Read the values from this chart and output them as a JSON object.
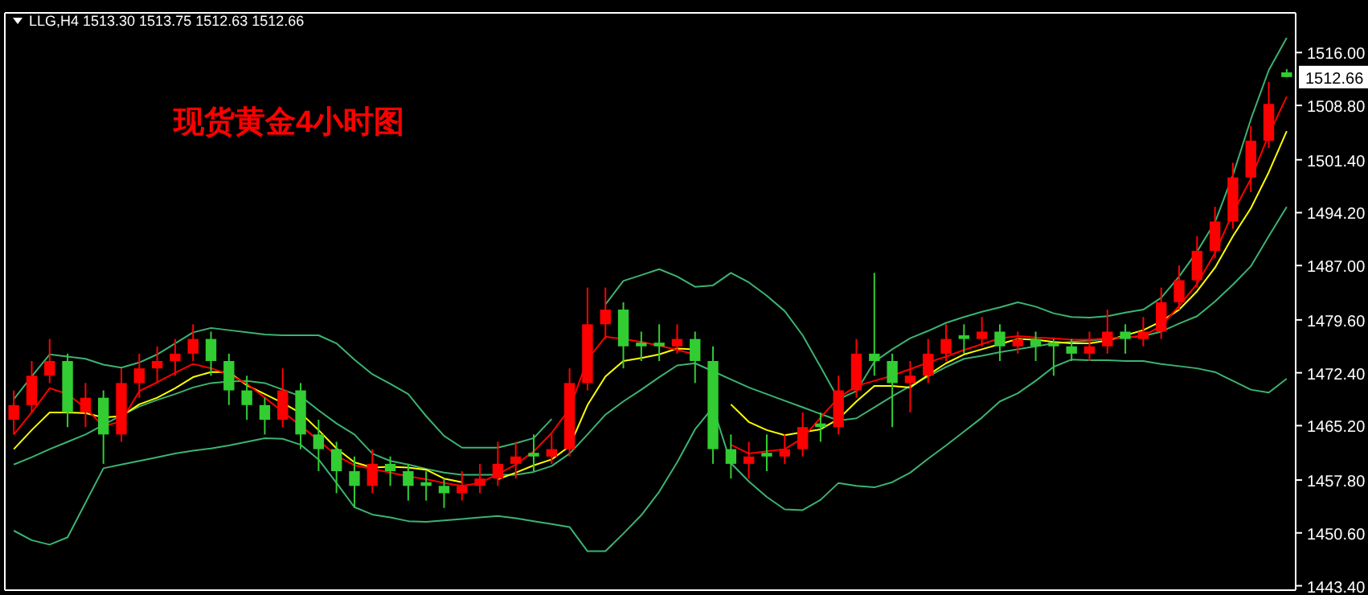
{
  "chart_data": {
    "type": "candlestick",
    "title": "现货黄金4小时图",
    "subtitle": "LLG,H4  1513.30 1513.75 1512.63 1512.66",
    "categories": [
      null,
      null,
      null,
      null,
      null,
      null,
      null,
      null,
      null,
      null,
      null,
      null,
      null,
      null,
      null,
      null,
      null,
      null,
      null,
      null,
      null,
      null,
      null,
      null,
      null,
      null,
      null,
      null,
      null,
      null,
      null,
      null,
      null,
      null,
      null,
      null,
      null,
      null,
      null,
      null,
      null,
      null,
      null,
      null,
      null,
      null,
      null,
      null,
      null,
      null,
      null,
      null,
      null,
      null,
      null,
      null,
      null,
      null,
      null,
      null,
      null,
      null,
      null,
      null,
      null,
      null,
      null,
      null,
      null,
      null,
      null,
      null
    ],
    "ohlc": [
      [
        1466,
        1470,
        1464,
        1468
      ],
      [
        1468,
        1474,
        1467,
        1472
      ],
      [
        1472,
        1477,
        1471,
        1474
      ],
      [
        1474,
        1475,
        1465,
        1467
      ],
      [
        1467,
        1471,
        1465,
        1469
      ],
      [
        1469,
        1470,
        1460,
        1464
      ],
      [
        1464,
        1473,
        1463,
        1471
      ],
      [
        1471,
        1475,
        1469,
        1473
      ],
      [
        1473,
        1476,
        1471,
        1474
      ],
      [
        1474,
        1477,
        1472,
        1475
      ],
      [
        1475,
        1479,
        1474,
        1477
      ],
      [
        1477,
        1478,
        1472,
        1474
      ],
      [
        1474,
        1475,
        1468,
        1470
      ],
      [
        1470,
        1472,
        1466,
        1468
      ],
      [
        1468,
        1469,
        1464,
        1466
      ],
      [
        1466,
        1473,
        1465,
        1470
      ],
      [
        1470,
        1471,
        1462,
        1464
      ],
      [
        1464,
        1466,
        1459,
        1462
      ],
      [
        1462,
        1463,
        1456,
        1459
      ],
      [
        1459,
        1461,
        1454,
        1457
      ],
      [
        1457,
        1462,
        1456,
        1460
      ],
      [
        1460,
        1461,
        1457,
        1459
      ],
      [
        1459,
        1460,
        1455,
        1457
      ],
      [
        1457.5,
        1459,
        1455,
        1457
      ],
      [
        1457,
        1458,
        1454,
        1456
      ],
      [
        1456,
        1459,
        1455,
        1457
      ],
      [
        1457,
        1460,
        1456,
        1458
      ],
      [
        1458,
        1463,
        1457,
        1460
      ],
      [
        1460,
        1463,
        1458,
        1461
      ],
      [
        1461.5,
        1464,
        1459,
        1461
      ],
      [
        1461,
        1464,
        1460,
        1462
      ],
      [
        1462,
        1473,
        1461,
        1471
      ],
      [
        1471,
        1484,
        1470,
        1479
      ],
      [
        1479,
        1484,
        1477,
        1481
      ],
      [
        1481,
        1482,
        1473,
        1476
      ],
      [
        1476.5,
        1478,
        1474,
        1476
      ],
      [
        1476.5,
        1479,
        1474,
        1476
      ],
      [
        1476,
        1479,
        1475,
        1477
      ],
      [
        1477,
        1478,
        1471,
        1474
      ],
      [
        1474,
        1476,
        1460,
        1462
      ],
      [
        1462,
        1464,
        1458,
        1460
      ],
      [
        1460,
        1463,
        1458,
        1461
      ],
      [
        1461.5,
        1464,
        1459,
        1461
      ],
      [
        1461,
        1464,
        1460,
        1462
      ],
      [
        1462,
        1467,
        1461,
        1465
      ],
      [
        1465.5,
        1467,
        1463,
        1465
      ],
      [
        1465,
        1472,
        1464,
        1470
      ],
      [
        1470,
        1477,
        1469,
        1475
      ],
      [
        1475,
        1486,
        1472,
        1474
      ],
      [
        1474,
        1475,
        1465,
        1471
      ],
      [
        1471,
        1474,
        1467,
        1472
      ],
      [
        1472,
        1477,
        1471,
        1475
      ],
      [
        1475,
        1479,
        1474,
        1477
      ],
      [
        1477.5,
        1479,
        1475,
        1477
      ],
      [
        1477,
        1480,
        1476,
        1478
      ],
      [
        1478,
        1479,
        1474,
        1476
      ],
      [
        1476,
        1478,
        1475,
        1477
      ],
      [
        1477,
        1478,
        1474,
        1476
      ],
      [
        1476.5,
        1477,
        1472,
        1476
      ],
      [
        1476,
        1477,
        1474,
        1475
      ],
      [
        1475,
        1478,
        1474,
        1476
      ],
      [
        1476,
        1481,
        1475,
        1478
      ],
      [
        1478,
        1479,
        1475,
        1477
      ],
      [
        1477,
        1480,
        1476,
        1478
      ],
      [
        1478,
        1484,
        1477,
        1482
      ],
      [
        1482,
        1487,
        1481,
        1485
      ],
      [
        1485,
        1491,
        1484,
        1489
      ],
      [
        1489,
        1495,
        1488,
        1493
      ],
      [
        1493,
        1501,
        1492,
        1499
      ],
      [
        1499,
        1506,
        1497,
        1504
      ],
      [
        1504,
        1512,
        1503,
        1509
      ],
      [
        1513.3,
        1513.75,
        1512.63,
        1512.66
      ]
    ],
    "colors": [
      "#ff0000",
      "#ff0000",
      "#ff0000",
      "#32cd32",
      "#ff0000",
      "#32cd32",
      "#ff0000",
      "#ff0000",
      "#ff0000",
      "#ff0000",
      "#ff0000",
      "#32cd32",
      "#32cd32",
      "#32cd32",
      "#32cd32",
      "#ff0000",
      "#32cd32",
      "#32cd32",
      "#32cd32",
      "#32cd32",
      "#ff0000",
      "#32cd32",
      "#32cd32",
      "#32cd32",
      "#32cd32",
      "#ff0000",
      "#ff0000",
      "#ff0000",
      "#ff0000",
      "#32cd32",
      "#ff0000",
      "#ff0000",
      "#ff0000",
      "#ff0000",
      "#32cd32",
      "#32cd32",
      "#32cd32",
      "#ff0000",
      "#32cd32",
      "#32cd32",
      "#32cd32",
      "#ff0000",
      "#32cd32",
      "#ff0000",
      "#ff0000",
      "#32cd32",
      "#ff0000",
      "#ff0000",
      "#32cd32",
      "#32cd32",
      "#ff0000",
      "#ff0000",
      "#ff0000",
      "#32cd32",
      "#ff0000",
      "#32cd32",
      "#ff0000",
      "#32cd32",
      "#32cd32",
      "#32cd32",
      "#ff0000",
      "#ff0000",
      "#32cd32",
      "#ff0000",
      "#ff0000",
      "#ff0000",
      "#ff0000",
      "#ff0000",
      "#ff0000",
      "#ff0000",
      "#ff0000",
      "#32cd32"
    ],
    "series": [
      {
        "type": "line",
        "color": "#3cb371",
        "values": [
          1468.8,
          1471.9,
          1474.9,
          1474.6,
          1474.3,
          1473.5,
          1473.1,
          1473.8,
          1474.9,
          1476.4,
          1477.9,
          1478.5,
          1478.2,
          1477.9,
          1477.6,
          1477.5,
          1477.5,
          1477.5,
          1476.4,
          1474.2,
          1472.2,
          1470.9,
          1469.5,
          1466.5,
          1463.8,
          1462.2,
          1462.2,
          1462.2,
          1462.8,
          1463.5,
          1466.1,
          null,
          null,
          1481.7,
          1484.9,
          1485.7,
          1486.5,
          1485.5,
          1484.1,
          1484.3,
          1486.0,
          1484.7,
          1482.9,
          1480.8,
          1477.5,
          1473.2,
          1468.8,
          1469.9,
          1473.9,
          1475.6,
          1477.1,
          1478.1,
          1479.2,
          1480.0,
          1480.7,
          1481.3,
          1482.0,
          1481.4,
          1480.5,
          1480.0,
          1479.9,
          1480.1,
          1480.6,
          1481.0,
          1482.6,
          1485.5,
          1488.9,
          1492.9,
          1499.3,
          1506.9,
          1513.6,
          1518.0
        ]
      },
      {
        "type": "line",
        "color": "#3cb371",
        "values": [
          1459.9,
          1460.9,
          1462.0,
          1463.0,
          1464.0,
          1465.3,
          1466.6,
          1467.8,
          1468.7,
          1469.5,
          1470.4,
          1471.0,
          1471.2,
          1471.3,
          1471.0,
          1470.1,
          1469.2,
          1467.3,
          1465.5,
          1464.0,
          1461.4,
          1460.4,
          1459.9,
          1459.3,
          1458.8,
          1458.5,
          1458.5,
          1458.5,
          1458.5,
          1458.9,
          1459.7,
          1461.4,
          1464.0,
          1466.7,
          1468.5,
          1470.1,
          1471.8,
          1473.4,
          1473.7,
          1472.6,
          1471.5,
          1470.4,
          1469.5,
          1468.6,
          1467.7,
          1466.8,
          1465.9,
          1466.2,
          1467.7,
          1469.2,
          1470.6,
          1471.9,
          1473.2,
          1474.3,
          1474.7,
          1475.2,
          1475.6,
          1476.0,
          1476.4,
          1476.6,
          1476.8,
          1477.0,
          1477.2,
          1477.4,
          1478.0,
          1479.1,
          1480.1,
          1482.1,
          1484.4,
          1486.9,
          1491.0,
          1495.0
        ]
      },
      {
        "type": "line",
        "color": "#3cb371",
        "values": [
          1450.9,
          1449.6,
          1449.0,
          1450.0,
          1454.7,
          1459.4,
          1459.9,
          1460.4,
          1460.9,
          1461.4,
          1461.8,
          1462.1,
          1462.5,
          1463.0,
          1463.5,
          1463.4,
          1462.6,
          1460.6,
          1457.4,
          1454.1,
          1453.1,
          1452.7,
          1452.2,
          1452.1,
          1452.3,
          1452.5,
          1452.7,
          1452.9,
          1452.6,
          1452.2,
          1451.8,
          1451.4,
          1448.1,
          1448.1,
          1450.5,
          1453.0,
          1456.2,
          1460.2,
          1464.7,
          1467.7,
          1460.1,
          1457.6,
          1455.5,
          1453.8,
          1453.7,
          1455.1,
          1457.4,
          1457.0,
          1456.8,
          1457.5,
          1458.8,
          1460.7,
          1462.5,
          1464.4,
          1466.3,
          1468.5,
          1469.6,
          1471.3,
          1473.2,
          1474.2,
          1474.1,
          1474.1,
          1474.0,
          1474.0,
          1473.6,
          1473.3,
          1473.0,
          1472.5,
          1471.3,
          1470.1,
          1469.7,
          1471.6
        ]
      },
      {
        "type": "line",
        "color": "#ffff00",
        "values": [
          1462.0,
          1464.6,
          1467.0,
          1467.0,
          1466.9,
          1466.3,
          1466.5,
          1468.1,
          1469.0,
          1470.3,
          1471.8,
          1472.5,
          1472.5,
          1470.7,
          1469.5,
          1468.3,
          1466.9,
          1464.6,
          1462.1,
          1460.2,
          1459.5,
          1459.6,
          1459.5,
          1459.2,
          1458.0,
          1457.5,
          null,
          1457.9,
          1458.8,
          1459.8,
          1460.6,
          1462.4,
          1468.0,
          1471.9,
          1474.0,
          1474.4,
          1474.9,
          1475.7,
          1475.6,
          null,
          1468.1,
          1465.7,
          1464.6,
          1463.9,
          1464.3,
          1464.7,
          1466.1,
          1468.5,
          1470.6,
          1470.6,
          1470.4,
          1472.1,
          1473.7,
          1474.9,
          1475.6,
          1476.3,
          1477.0,
          1476.9,
          1476.6,
          1476.4,
          1476.4,
          1476.8,
          1477.5,
          1478.2,
          1479.4,
          1481.0,
          1483.5,
          1486.7,
          1491.0,
          1494.8,
          1499.7,
          1505.3
        ]
      },
      {
        "type": "line",
        "color": "#ff0000",
        "values": [
          1464.0,
          1467.0,
          1470.3,
          1469.5,
          1467.6,
          1465.1,
          1465.8,
          1469.9,
          1471.1,
          1472.4,
          1473.6,
          1473.0,
          1472.2,
          1470.9,
          1469.0,
          1467.1,
          1465.2,
          1463.2,
          1461.1,
          1459.8,
          1459.3,
          1458.8,
          1458.3,
          1457.9,
          1457.4,
          1457.0,
          1457.4,
          1458.6,
          1459.9,
          1461.7,
          1464.2,
          1467.5,
          1474.2,
          1477.3,
          1477.0,
          1476.6,
          1476.1,
          1475.5,
          1474.9,
          null,
          1462.6,
          1461.4,
          1461.7,
          1462.0,
          1463.5,
          1466.3,
          1469.0,
          1470.6,
          1471.3,
          1472.0,
          1472.9,
          1473.8,
          1474.6,
          1475.5,
          1476.3,
          1477.1,
          1477.4,
          1477.2,
          1477.1,
          1476.9,
          1476.9,
          1477.1,
          1477.2,
          1477.4,
          1478.8,
          1481.5,
          1484.5,
          1488.7,
          1494.2,
          1498.8,
          1504.8,
          1510.0
        ]
      }
    ],
    "ylim": [
      1442.8,
      1521.4
    ],
    "yticks": [
      {
        "value": 1443.4,
        "label": "1443.40"
      },
      {
        "value": 1450.6,
        "label": "1450.60"
      },
      {
        "value": 1457.8,
        "label": "1457.80"
      },
      {
        "value": 1465.2,
        "label": "1465.20"
      },
      {
        "value": 1472.4,
        "label": "1472.40"
      },
      {
        "value": 1479.6,
        "label": "1479.60"
      },
      {
        "value": 1487,
        "label": "1487.00"
      },
      {
        "value": 1494.2,
        "label": "1494.20"
      },
      {
        "value": 1501.4,
        "label": "1501.40"
      },
      {
        "value": 1508.8,
        "label": "1508.80"
      },
      {
        "value": 1516,
        "label": "1516.00"
      }
    ],
    "annotations": [
      {
        "text": "1512.66",
        "y": 1512.66
      }
    ],
    "tick_labels": "y",
    "marker": "none",
    "line_style": "solid"
  }
}
